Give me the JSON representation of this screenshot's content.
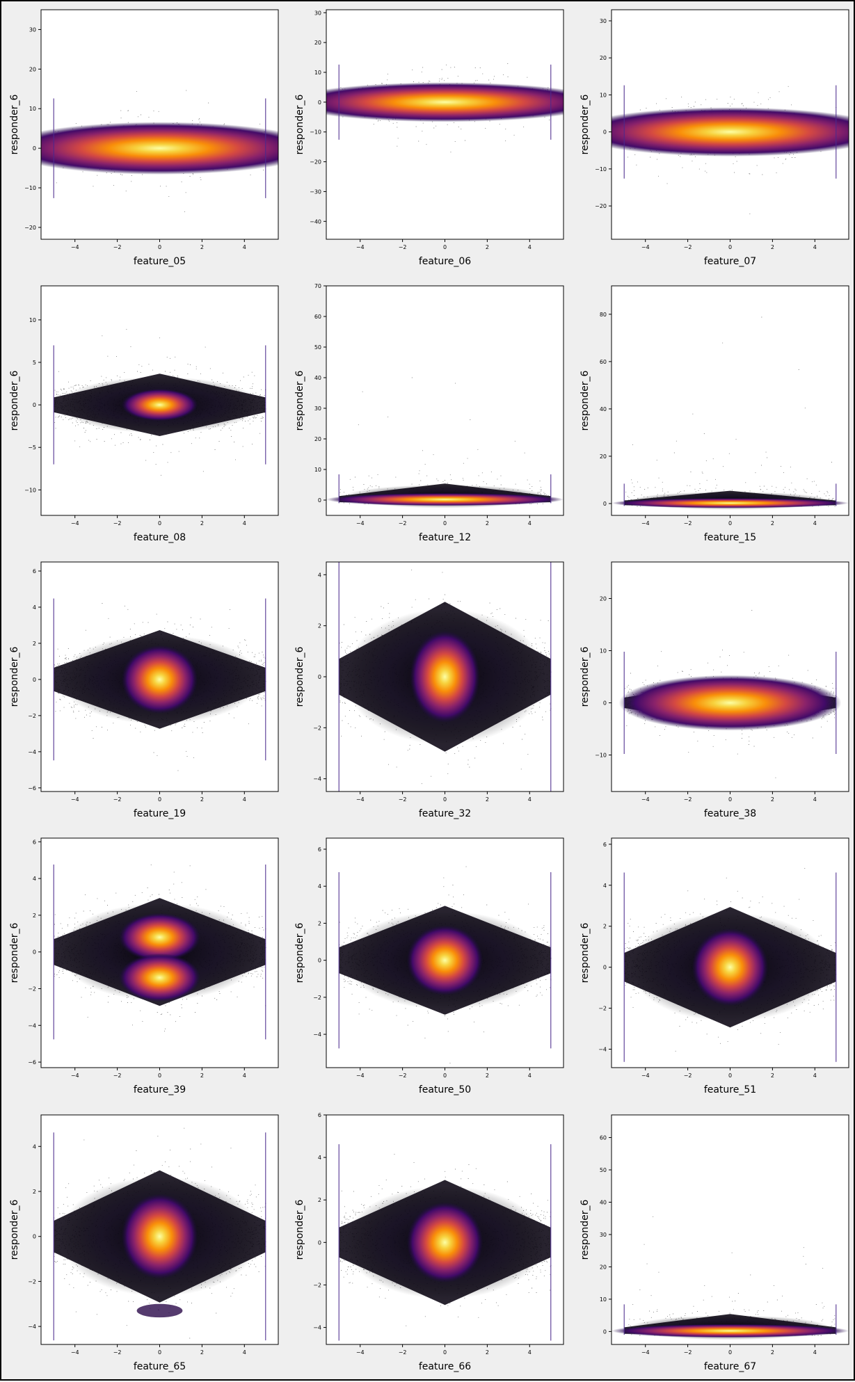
{
  "figure": {
    "background": "#efefef",
    "frame_color": "#000000"
  },
  "chart_data": [
    {
      "type": "scatter",
      "density_colormap": "inferno",
      "xlabel": "feature_05",
      "ylabel": "responder_6",
      "xlim": [
        -5.6,
        5.6
      ],
      "ylim": [
        -23,
        35
      ],
      "xticks": [
        -4,
        -2,
        0,
        2,
        4
      ],
      "yticks": [
        -20,
        -10,
        0,
        10,
        20,
        30
      ],
      "x_range": [
        -5,
        5
      ],
      "core_width": [
        5.0,
        3.5
      ],
      "tail_width": [
        4,
        9,
        14
      ],
      "peak": "center",
      "grid": false
    },
    {
      "type": "scatter",
      "density_colormap": "inferno",
      "xlabel": "feature_06",
      "ylabel": "responder_6",
      "xlim": [
        -5.6,
        5.6
      ],
      "ylim": [
        -46,
        31
      ],
      "xticks": [
        -4,
        -2,
        0,
        2,
        4
      ],
      "yticks": [
        -40,
        -30,
        -20,
        -10,
        0,
        10,
        20,
        30
      ],
      "x_range": [
        -5,
        5
      ],
      "core_width": [
        5.0,
        3.5
      ],
      "tail_width": [
        4,
        9,
        16
      ],
      "peak": "center",
      "grid": false
    },
    {
      "type": "scatter",
      "density_colormap": "inferno",
      "xlabel": "feature_07",
      "ylabel": "responder_6",
      "xlim": [
        -5.6,
        5.6
      ],
      "ylim": [
        -29,
        33
      ],
      "xticks": [
        -4,
        -2,
        0,
        2,
        4
      ],
      "yticks": [
        -20,
        -10,
        0,
        10,
        20,
        30
      ],
      "x_range": [
        -5,
        5
      ],
      "core_width": [
        5.0,
        3.5
      ],
      "tail_width": [
        4,
        9,
        14
      ],
      "peak": "center",
      "grid": false
    },
    {
      "type": "scatter",
      "density_colormap": "inferno",
      "xlabel": "feature_08",
      "ylabel": "responder_6",
      "xlim": [
        -5.6,
        5.6
      ],
      "ylim": [
        -13,
        14
      ],
      "xticks": [
        -4,
        -2,
        0,
        2,
        4
      ],
      "yticks": [
        -10,
        -5,
        0,
        5,
        10
      ],
      "x_range": [
        -5,
        5
      ],
      "core_width": [
        1.2,
        1.0
      ],
      "tail_width": [
        3.5,
        5,
        9
      ],
      "peak": "center",
      "grid": false
    },
    {
      "type": "scatter",
      "density_colormap": "inferno",
      "xlabel": "feature_12",
      "ylabel": "responder_6",
      "xlim": [
        -5.6,
        5.6
      ],
      "ylim": [
        -5,
        70
      ],
      "xticks": [
        -4,
        -2,
        0,
        2,
        4
      ],
      "yticks": [
        0,
        10,
        20,
        30,
        40,
        50,
        60,
        70
      ],
      "x_range": [
        -5,
        5
      ],
      "core_width": [
        4,
        3
      ],
      "tail_width": [
        4,
        6,
        40
      ],
      "peak": "skewed-up",
      "grid": false
    },
    {
      "type": "scatter",
      "density_colormap": "inferno",
      "xlabel": "feature_15",
      "ylabel": "responder_6",
      "xlim": [
        -5.6,
        5.6
      ],
      "ylim": [
        -5,
        92
      ],
      "xticks": [
        -4,
        -2,
        0,
        2,
        4
      ],
      "yticks": [
        0,
        20,
        40,
        60,
        80
      ],
      "x_range": [
        -5,
        5
      ],
      "core_width": [
        4,
        3
      ],
      "tail_width": [
        4,
        6,
        70
      ],
      "peak": "skewed-up",
      "grid": false
    },
    {
      "type": "scatter",
      "density_colormap": "inferno",
      "xlabel": "feature_19",
      "ylabel": "responder_6",
      "xlim": [
        -5.6,
        5.6
      ],
      "ylim": [
        -6.2,
        6.5
      ],
      "xticks": [
        -4,
        -2,
        0,
        2,
        4
      ],
      "yticks": [
        -6,
        -4,
        -2,
        0,
        2,
        4,
        6
      ],
      "x_range": [
        -5,
        5
      ],
      "core_width": [
        1.2,
        1.0
      ],
      "tail_width": [
        2.6,
        3.2,
        4.5
      ],
      "peak": "center",
      "grid": false
    },
    {
      "type": "scatter",
      "density_colormap": "inferno",
      "xlabel": "feature_32",
      "ylabel": "responder_6",
      "xlim": [
        -5.6,
        5.6
      ],
      "ylim": [
        -4.5,
        4.5
      ],
      "xticks": [
        -4,
        -2,
        0,
        2,
        4
      ],
      "yticks": [
        -4,
        -2,
        0,
        2,
        4
      ],
      "x_range": [
        -5,
        5
      ],
      "core_width": [
        1.1,
        0.95
      ],
      "tail_width": [
        2.8,
        3.5,
        4
      ],
      "peak": "center",
      "grid": false
    },
    {
      "type": "scatter",
      "density_colormap": "inferno",
      "xlabel": "feature_38",
      "ylabel": "responder_6",
      "xlim": [
        -5.6,
        5.6
      ],
      "ylim": [
        -17,
        27
      ],
      "xticks": [
        -4,
        -2,
        0,
        2,
        4
      ],
      "yticks": [
        -10,
        0,
        10,
        20
      ],
      "x_range": [
        -5,
        5
      ],
      "core_width": [
        3.5,
        2.8
      ],
      "tail_width": [
        4,
        7,
        14
      ],
      "peak": "center",
      "grid": false
    },
    {
      "type": "scatter",
      "density_colormap": "inferno",
      "xlabel": "feature_39",
      "ylabel": "responder_6",
      "xlim": [
        -5.6,
        5.6
      ],
      "ylim": [
        -6.3,
        6.2
      ],
      "xticks": [
        -4,
        -2,
        0,
        2,
        4
      ],
      "yticks": [
        -6,
        -4,
        -2,
        0,
        2,
        4,
        6
      ],
      "x_range": [
        -5,
        5
      ],
      "core_width": [
        1.2,
        1.1
      ],
      "tail_width": [
        2.8,
        3.4,
        4.5
      ],
      "peak": "bimodal",
      "grid": false
    },
    {
      "type": "scatter",
      "density_colormap": "inferno",
      "xlabel": "feature_50",
      "ylabel": "responder_6",
      "xlim": [
        -5.6,
        5.6
      ],
      "ylim": [
        -5.8,
        6.6
      ],
      "xticks": [
        -4,
        -2,
        0,
        2,
        4
      ],
      "yticks": [
        -4,
        -2,
        0,
        2,
        4,
        6
      ],
      "x_range": [
        -5,
        5
      ],
      "core_width": [
        1.2,
        1.0
      ],
      "tail_width": [
        2.8,
        3.4,
        4.5
      ],
      "peak": "center",
      "grid": false
    },
    {
      "type": "scatter",
      "density_colormap": "inferno",
      "xlabel": "feature_51",
      "ylabel": "responder_6",
      "xlim": [
        -5.6,
        5.6
      ],
      "ylim": [
        -4.9,
        6.3
      ],
      "xticks": [
        -4,
        -2,
        0,
        2,
        4
      ],
      "yticks": [
        -4,
        -2,
        0,
        2,
        4,
        6
      ],
      "x_range": [
        -5,
        5
      ],
      "core_width": [
        1.2,
        1.0
      ],
      "tail_width": [
        2.8,
        3.3,
        4.2
      ],
      "peak": "center",
      "grid": false
    },
    {
      "type": "scatter",
      "density_colormap": "inferno",
      "xlabel": "feature_65",
      "ylabel": "responder_6",
      "xlim": [
        -5.6,
        5.6
      ],
      "ylim": [
        -4.8,
        5.4
      ],
      "xticks": [
        -4,
        -2,
        0,
        2,
        4
      ],
      "yticks": [
        -4,
        -2,
        0,
        2,
        4
      ],
      "x_range": [
        -5,
        5
      ],
      "core_width": [
        1.2,
        1.0
      ],
      "tail_width": [
        2.8,
        3.3,
        4.2
      ],
      "peak": "center-with-lower-cluster",
      "grid": false
    },
    {
      "type": "scatter",
      "density_colormap": "inferno",
      "xlabel": "feature_66",
      "ylabel": "responder_6",
      "xlim": [
        -5.6,
        5.6
      ],
      "ylim": [
        -4.8,
        6
      ],
      "xticks": [
        -4,
        -2,
        0,
        2,
        4
      ],
      "yticks": [
        -4,
        -2,
        0,
        2,
        4,
        6
      ],
      "x_range": [
        -5,
        5
      ],
      "core_width": [
        1.2,
        1.0
      ],
      "tail_width": [
        2.8,
        3.3,
        4.2
      ],
      "peak": "center",
      "grid": false
    },
    {
      "type": "scatter",
      "density_colormap": "inferno",
      "xlabel": "feature_67",
      "ylabel": "responder_6",
      "xlim": [
        -5.6,
        5.6
      ],
      "ylim": [
        -4,
        67
      ],
      "xticks": [
        -4,
        -2,
        0,
        2,
        4
      ],
      "yticks": [
        0,
        10,
        20,
        30,
        40,
        50,
        60
      ],
      "x_range": [
        -5,
        5
      ],
      "core_width": [
        4,
        3
      ],
      "tail_width": [
        4,
        6,
        40
      ],
      "peak": "skewed-up",
      "grid": false
    }
  ]
}
